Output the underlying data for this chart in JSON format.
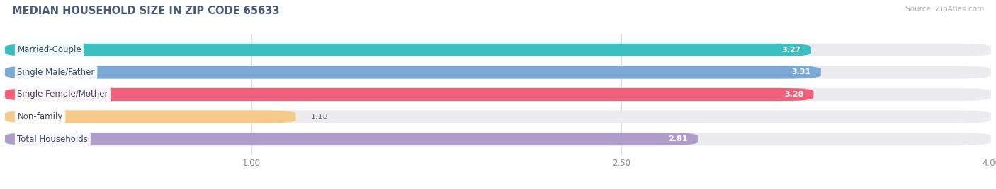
{
  "title": "MEDIAN HOUSEHOLD SIZE IN ZIP CODE 65633",
  "source": "Source: ZipAtlas.com",
  "categories": [
    "Married-Couple",
    "Single Male/Father",
    "Single Female/Mother",
    "Non-family",
    "Total Households"
  ],
  "values": [
    3.27,
    3.31,
    3.28,
    1.18,
    2.81
  ],
  "bar_colors": [
    "#3bbfbf",
    "#7aaad4",
    "#f0607a",
    "#f5c98a",
    "#b09cc8"
  ],
  "value_bg_colors": [
    "#3bbfbf",
    "#6699cc",
    "#f0607a",
    "#f5c98a",
    "#b09cc8"
  ],
  "xlim_data": [
    0,
    4.0
  ],
  "xstart": 0.0,
  "xticks": [
    1.0,
    2.5,
    4.0
  ],
  "background_color": "#ffffff",
  "bar_bg_color": "#ebebf0",
  "title_color": "#4a5a7a",
  "title_fontsize": 10.5,
  "label_fontsize": 8.5,
  "value_fontsize": 8,
  "bar_height": 0.58,
  "source_color": "#aaaaaa"
}
